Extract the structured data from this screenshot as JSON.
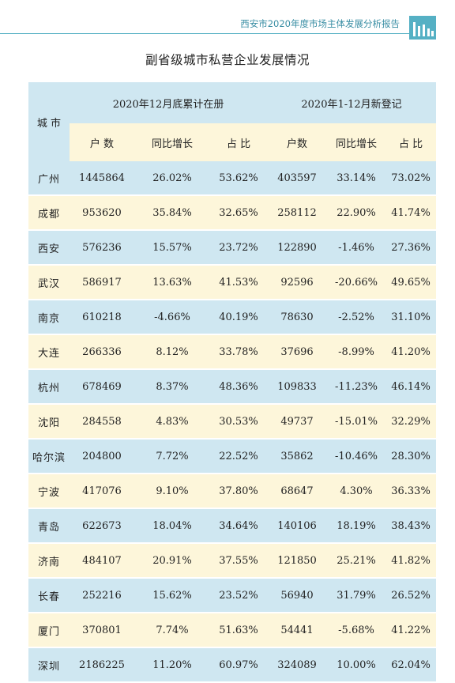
{
  "header": {
    "report_title": "西安市2020年度市场主体发展分析报告"
  },
  "colors": {
    "accent": "#55b0c4",
    "row_blue": "#cfe7f1",
    "row_yellow": "#fdf6da"
  },
  "table": {
    "title": "副省级城市私营企业发展情况",
    "city_header": "城 市",
    "group1_label": "2020年12月底累计在册",
    "group2_label": "2020年1-12月新登记",
    "subheaders": [
      "户  数",
      "同比增长",
      "占  比",
      "户数",
      "同比增长",
      "占  比"
    ],
    "rows": [
      {
        "city": "广州",
        "c1": "1445864",
        "c2": "26.02%",
        "c3": "53.62%",
        "c4": "403597",
        "c5": "33.14%",
        "c6": "73.02%"
      },
      {
        "city": "成都",
        "c1": "953620",
        "c2": "35.84%",
        "c3": "32.65%",
        "c4": "258112",
        "c5": "22.90%",
        "c6": "41.74%"
      },
      {
        "city": "西安",
        "c1": "576236",
        "c2": "15.57%",
        "c3": "23.72%",
        "c4": "122890",
        "c5": "-1.46%",
        "c6": "27.36%"
      },
      {
        "city": "武汉",
        "c1": "586917",
        "c2": "13.63%",
        "c3": "41.53%",
        "c4": "92596",
        "c5": "-20.66%",
        "c6": "49.65%"
      },
      {
        "city": "南京",
        "c1": "610218",
        "c2": "-4.66%",
        "c3": "40.19%",
        "c4": "78630",
        "c5": "-2.52%",
        "c6": "31.10%"
      },
      {
        "city": "大连",
        "c1": "266336",
        "c2": "8.12%",
        "c3": "33.78%",
        "c4": "37696",
        "c5": "-8.99%",
        "c6": "41.20%"
      },
      {
        "city": "杭州",
        "c1": "678469",
        "c2": "8.37%",
        "c3": "48.36%",
        "c4": "109833",
        "c5": "-11.23%",
        "c6": "46.14%"
      },
      {
        "city": "沈阳",
        "c1": "284558",
        "c2": "4.83%",
        "c3": "30.53%",
        "c4": "49737",
        "c5": "-15.01%",
        "c6": "32.29%"
      },
      {
        "city": "哈尔滨",
        "c1": "204800",
        "c2": "7.72%",
        "c3": "22.52%",
        "c4": "35862",
        "c5": "-10.46%",
        "c6": "28.30%"
      },
      {
        "city": "宁波",
        "c1": "417076",
        "c2": "9.10%",
        "c3": "37.80%",
        "c4": "68647",
        "c5": "4.30%",
        "c6": "36.33%"
      },
      {
        "city": "青岛",
        "c1": "622673",
        "c2": "18.04%",
        "c3": "34.64%",
        "c4": "140106",
        "c5": "18.19%",
        "c6": "38.43%"
      },
      {
        "city": "济南",
        "c1": "484107",
        "c2": "20.91%",
        "c3": "37.55%",
        "c4": "121850",
        "c5": "25.21%",
        "c6": "41.82%"
      },
      {
        "city": "长春",
        "c1": "252216",
        "c2": "15.62%",
        "c3": "23.52%",
        "c4": "56940",
        "c5": "31.79%",
        "c6": "26.52%"
      },
      {
        "city": "厦门",
        "c1": "370801",
        "c2": "7.74%",
        "c3": "51.63%",
        "c4": "54441",
        "c5": "-5.68%",
        "c6": "41.22%"
      },
      {
        "city": "深圳",
        "c1": "2186225",
        "c2": "11.20%",
        "c3": "60.97%",
        "c4": "324089",
        "c5": "10.00%",
        "c6": "62.04%"
      }
    ]
  }
}
